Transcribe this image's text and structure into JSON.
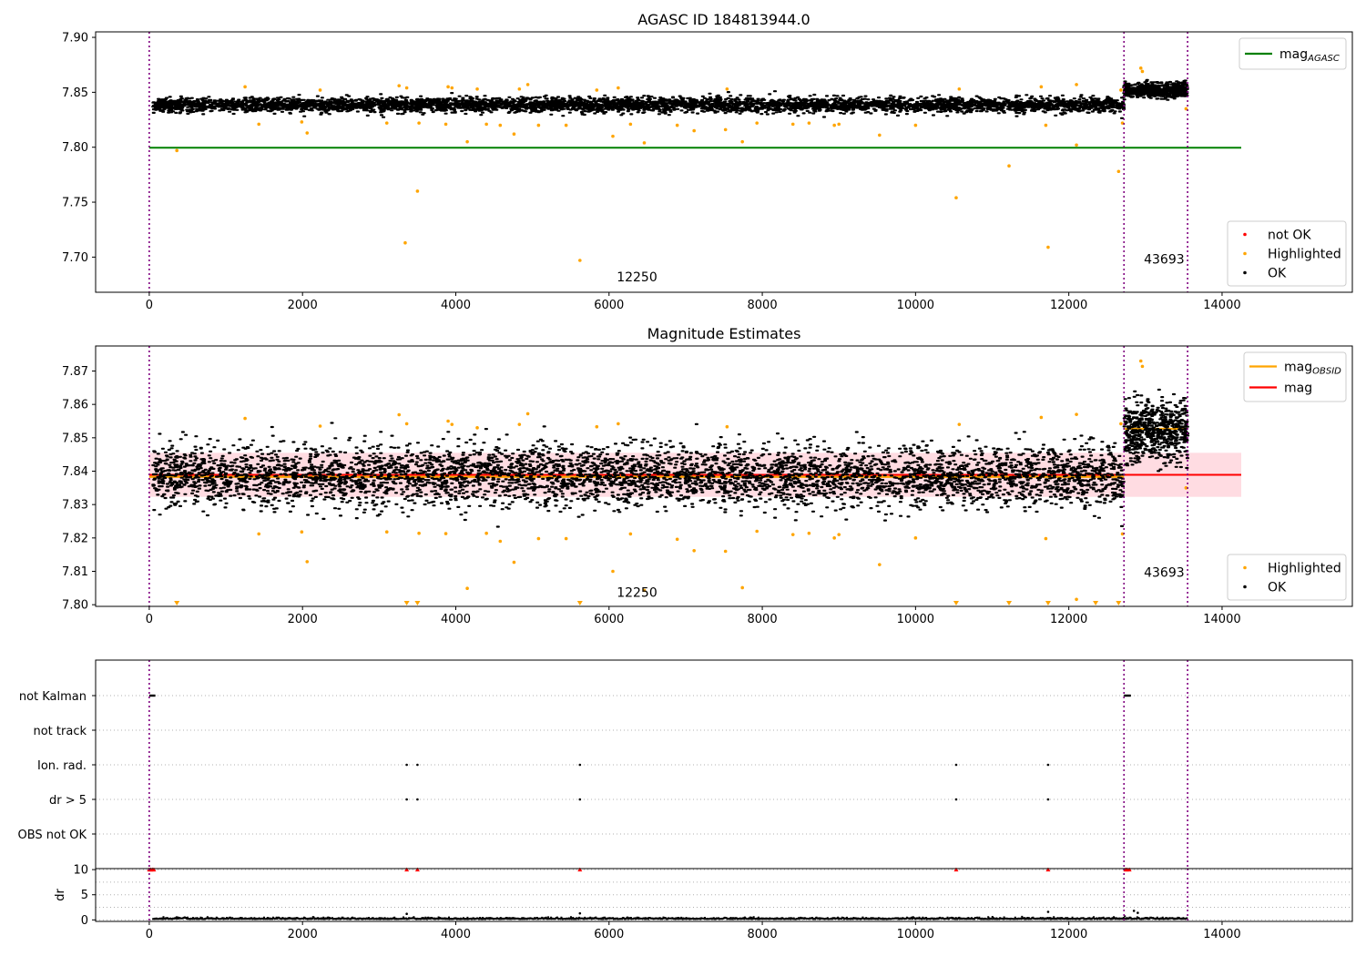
{
  "figure": {
    "top_title": "AGASC ID 184813944.0",
    "middle_title": "Magnitude Estimates"
  },
  "colors": {
    "ok": "#000000",
    "highlighted": "#ffa500",
    "not_ok": "#ff0000",
    "mag_agasc": "#008000",
    "mag_obsid": "#ffa500",
    "mag": "#ff0000",
    "band": "#ffc0cb",
    "obsid_divider": "#800080",
    "grid": "#b0b0b0"
  },
  "chart_data": [
    {
      "type": "scatter",
      "title": "AGASC ID 184813944.0",
      "xlim": [
        -700,
        15700
      ],
      "ylim": [
        7.668,
        7.905
      ],
      "x_ticks": [
        0,
        2000,
        4000,
        6000,
        8000,
        10000,
        12000,
        14000
      ],
      "y_ticks": [
        7.7,
        7.75,
        7.8,
        7.85,
        7.9
      ],
      "y_tick_labels": [
        "7.70",
        "7.75",
        "7.80",
        "7.85",
        "7.90"
      ],
      "obsid_boundaries": [
        0,
        12720,
        13550
      ],
      "obsid_labels": [
        {
          "text": "12250",
          "x": 6100,
          "y": 7.678
        },
        {
          "text": "43693",
          "x": 12980,
          "y": 7.694
        }
      ],
      "mag_agasc": {
        "value": 7.7995,
        "x_range": [
          0,
          14250
        ]
      },
      "ok_series": [
        {
          "x_range": [
            50,
            12720
          ],
          "center": 7.8385,
          "spread": 0.006,
          "density": 4800
        },
        {
          "x_range": [
            12720,
            13550
          ],
          "center": 7.852,
          "spread": 0.006,
          "density": 650
        }
      ],
      "highlighted": [
        [
          360,
          7.797
        ],
        [
          1250,
          7.855
        ],
        [
          1430,
          7.821
        ],
        [
          1990,
          7.823
        ],
        [
          2060,
          7.813
        ],
        [
          2230,
          7.852
        ],
        [
          3100,
          7.822
        ],
        [
          3260,
          7.856
        ],
        [
          3340,
          7.713
        ],
        [
          3360,
          7.854
        ],
        [
          3500,
          7.76
        ],
        [
          3520,
          7.822
        ],
        [
          3870,
          7.821
        ],
        [
          3900,
          7.855
        ],
        [
          3950,
          7.854
        ],
        [
          4150,
          7.805
        ],
        [
          4280,
          7.853
        ],
        [
          4400,
          7.821
        ],
        [
          4580,
          7.82
        ],
        [
          4760,
          7.812
        ],
        [
          4830,
          7.853
        ],
        [
          4940,
          7.857
        ],
        [
          5080,
          7.82
        ],
        [
          5440,
          7.82
        ],
        [
          5620,
          7.697
        ],
        [
          5840,
          7.852
        ],
        [
          6050,
          7.81
        ],
        [
          6120,
          7.854
        ],
        [
          6280,
          7.821
        ],
        [
          6460,
          7.804
        ],
        [
          6890,
          7.82
        ],
        [
          7110,
          7.815
        ],
        [
          7520,
          7.816
        ],
        [
          7540,
          7.853
        ],
        [
          7740,
          7.805
        ],
        [
          7930,
          7.822
        ],
        [
          8400,
          7.821
        ],
        [
          8610,
          7.822
        ],
        [
          8940,
          7.82
        ],
        [
          9000,
          7.821
        ],
        [
          9530,
          7.811
        ],
        [
          10000,
          7.82
        ],
        [
          10530,
          7.754
        ],
        [
          10570,
          7.853
        ],
        [
          11220,
          7.783
        ],
        [
          11640,
          7.855
        ],
        [
          11700,
          7.82
        ],
        [
          11730,
          7.709
        ],
        [
          12100,
          7.857
        ],
        [
          12100,
          7.802
        ],
        [
          12650,
          7.778
        ],
        [
          12680,
          7.852
        ],
        [
          12700,
          7.822
        ],
        [
          12940,
          7.872
        ],
        [
          12960,
          7.869
        ],
        [
          13530,
          7.835
        ]
      ],
      "legend_lines": [
        {
          "label": "mag",
          "sub": "AGASC",
          "color_key": "mag_agasc"
        }
      ],
      "legend_markers": [
        {
          "label": "not OK",
          "color_key": "not_ok"
        },
        {
          "label": "Highlighted",
          "color_key": "highlighted"
        },
        {
          "label": "OK",
          "color_key": "ok"
        }
      ]
    },
    {
      "type": "scatter",
      "title": "Magnitude Estimates",
      "xlim": [
        -700,
        15700
      ],
      "ylim": [
        7.7995,
        7.8775
      ],
      "x_ticks": [
        0,
        2000,
        4000,
        6000,
        8000,
        10000,
        12000,
        14000
      ],
      "y_ticks": [
        7.8,
        7.81,
        7.82,
        7.83,
        7.84,
        7.85,
        7.86,
        7.87
      ],
      "y_tick_labels": [
        "7.80",
        "7.81",
        "7.82",
        "7.83",
        "7.84",
        "7.85",
        "7.86",
        "7.87"
      ],
      "obsid_boundaries": [
        0,
        12720,
        13550
      ],
      "obsid_labels": [
        {
          "text": "12250",
          "x": 6100,
          "y": 7.8024
        },
        {
          "text": "43693",
          "x": 12980,
          "y": 7.8084
        }
      ],
      "mag": {
        "value": 7.8389,
        "x_range": [
          0,
          14250
        ],
        "band": [
          7.8323,
          7.8455
        ]
      },
      "mag_obsid": [
        {
          "value": 7.8383,
          "x_range": [
            0,
            12720
          ]
        },
        {
          "value": 7.8527,
          "x_range": [
            12720,
            13550
          ]
        }
      ],
      "ok_series": [
        {
          "x_range": [
            50,
            12720
          ],
          "center": 7.8385,
          "spread": 0.006,
          "density": 4800
        },
        {
          "x_range": [
            12720,
            13550
          ],
          "center": 7.852,
          "spread": 0.006,
          "density": 650
        }
      ],
      "highlighted": [
        [
          1250,
          7.8558
        ],
        [
          1430,
          7.8212
        ],
        [
          1990,
          7.8218
        ],
        [
          2060,
          7.8129
        ],
        [
          2230,
          7.8535
        ],
        [
          3100,
          7.8218
        ],
        [
          3260,
          7.8569
        ],
        [
          3360,
          7.8542
        ],
        [
          3520,
          7.8214
        ],
        [
          3870,
          7.8213
        ],
        [
          3900,
          7.855
        ],
        [
          3950,
          7.854
        ],
        [
          4150,
          7.8049
        ],
        [
          4280,
          7.853
        ],
        [
          4400,
          7.8214
        ],
        [
          4580,
          7.819
        ],
        [
          4760,
          7.8127
        ],
        [
          4830,
          7.854
        ],
        [
          4940,
          7.8572
        ],
        [
          5080,
          7.8198
        ],
        [
          5440,
          7.8198
        ],
        [
          5840,
          7.8533
        ],
        [
          6050,
          7.81
        ],
        [
          6120,
          7.8542
        ],
        [
          6280,
          7.8212
        ],
        [
          6460,
          7.8043
        ],
        [
          6890,
          7.8196
        ],
        [
          7110,
          7.8162
        ],
        [
          7520,
          7.816
        ],
        [
          7540,
          7.8533
        ],
        [
          7740,
          7.8051
        ],
        [
          7930,
          7.822
        ],
        [
          8400,
          7.821
        ],
        [
          8610,
          7.8214
        ],
        [
          8940,
          7.82
        ],
        [
          9000,
          7.821
        ],
        [
          9530,
          7.812
        ],
        [
          10000,
          7.82
        ],
        [
          10570,
          7.854
        ],
        [
          11640,
          7.8561
        ],
        [
          11700,
          7.8198
        ],
        [
          12100,
          7.857
        ],
        [
          12100,
          7.8016
        ],
        [
          12680,
          7.8542
        ],
        [
          12700,
          7.8212
        ],
        [
          12940,
          7.873
        ],
        [
          12960,
          7.8714
        ],
        [
          13530,
          7.835
        ]
      ],
      "off_scale_markers": [
        360,
        3360,
        3500,
        5620,
        10530,
        11220,
        11730,
        12350,
        12650
      ],
      "legend_lines": [
        {
          "label": "mag",
          "sub": "OBSID",
          "color_key": "mag_obsid"
        },
        {
          "label": "mag",
          "sub": "",
          "color_key": "mag"
        }
      ],
      "legend_markers": [
        {
          "label": "Highlighted",
          "color_key": "highlighted"
        },
        {
          "label": "OK",
          "color_key": "ok"
        }
      ]
    },
    {
      "type": "scatter",
      "xlim": [
        -700,
        15700
      ],
      "categories": [
        "not Kalman",
        "not track",
        "Ion. rad.",
        "dr > 5",
        "OBS not OK"
      ],
      "obsid_boundaries": [
        0,
        12720,
        13550
      ],
      "flags": {
        "not Kalman": [
          [
            0,
            80
          ],
          [
            12720,
            12810
          ]
        ],
        "not track": [],
        "Ion. rad.": [
          [
            3360
          ],
          [
            3500
          ],
          [
            5620
          ],
          [
            10530
          ],
          [
            11730
          ]
        ],
        "dr > 5": [
          [
            3360
          ],
          [
            3500
          ],
          [
            5620
          ],
          [
            10530
          ],
          [
            11730
          ]
        ],
        "OBS not OK": []
      }
    },
    {
      "type": "scatter",
      "xlim": [
        -700,
        15700
      ],
      "ylim": [
        -0.3,
        10.2
      ],
      "ylabel": "dr",
      "x_ticks": [
        0,
        2000,
        4000,
        6000,
        8000,
        10000,
        12000,
        14000
      ],
      "x_tick_labels": [
        "0",
        "2000",
        "4000",
        "6000",
        "8000",
        "10000",
        "12000",
        "14000"
      ],
      "y_ticks": [
        0,
        5,
        10
      ],
      "y_tick_labels": [
        "0",
        "5",
        "10"
      ],
      "obsid_boundaries": [
        0,
        12720,
        13550
      ],
      "clipped_at": 10,
      "clipped_markers": [
        0,
        20,
        40,
        60,
        3360,
        3500,
        5620,
        10530,
        11730,
        12740,
        12760,
        12790
      ],
      "baseline": {
        "x_range": [
          50,
          13550
        ],
        "level": 0.15,
        "spread": 0.15
      },
      "spikes": [
        [
          3360,
          1.2
        ],
        [
          5620,
          1.3
        ],
        [
          11730,
          1.6
        ],
        [
          12850,
          1.8
        ],
        [
          12900,
          1.4
        ]
      ]
    }
  ]
}
